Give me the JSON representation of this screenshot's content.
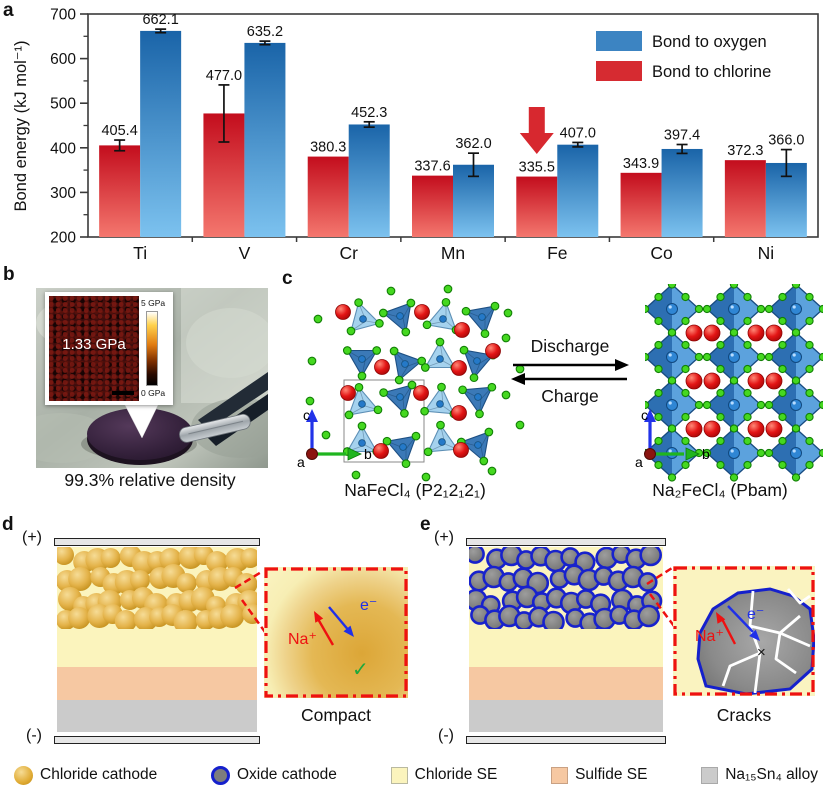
{
  "figure": {
    "panel_labels": {
      "a": "a",
      "b": "b",
      "c": "c",
      "d": "d",
      "e": "e"
    }
  },
  "chart_data": {
    "type": "bar",
    "categories": [
      "Ti",
      "V",
      "Cr",
      "Mn",
      "Fe",
      "Co",
      "Ni"
    ],
    "series": [
      {
        "name": "Bond to chlorine",
        "color": "#d7282f",
        "values": [
          405.4,
          477.0,
          380.3,
          337.6,
          335.5,
          343.9,
          372.3
        ],
        "errors": [
          12,
          64,
          0,
          0,
          0,
          0,
          0
        ]
      },
      {
        "name": "Bond to oxygen",
        "color": "#3d85c0",
        "values": [
          662.1,
          635.2,
          452.3,
          362.0,
          407.0,
          397.4,
          366.0
        ],
        "errors": [
          4,
          4,
          6,
          26,
          5,
          10,
          30
        ]
      }
    ],
    "ylabel": "Bond energy (kJ mol⁻¹)",
    "ylim": [
      200,
      700
    ],
    "yticks": [
      200,
      300,
      400,
      500,
      600,
      700
    ],
    "grid": false,
    "legend_position": "top-right",
    "legend": [
      {
        "label": "Bond to oxygen",
        "color": "#3c84c2"
      },
      {
        "label": "Bond to chlorine",
        "color": "#d62b31"
      }
    ],
    "annotation": {
      "shape": "down-arrow",
      "category": "Fe",
      "series": "Bond to chlorine",
      "color": "#d7282f"
    }
  },
  "panel_b": {
    "inset_value": "1.33 GPa",
    "scale_max": "5 GPa",
    "scale_min": "0 GPa",
    "caption": "99.3% relative density"
  },
  "panel_c": {
    "left_caption": "NaFeCl₄ (P2₁2₁2₁)",
    "right_caption": "Na₂FeCl₄ (Pbam)",
    "forward_label": "Discharge",
    "backward_label": "Charge",
    "axis_a": "a",
    "axis_b": "b",
    "axis_c": "c"
  },
  "panel_d": {
    "positive": "(+)",
    "negative": "(-)",
    "ion_label": "Na⁺",
    "electron_label": "e⁻",
    "check_glyph": "✓",
    "caption": "Compact"
  },
  "panel_e": {
    "positive": "(+)",
    "negative": "(-)",
    "ion_label": "Na⁺",
    "electron_label": "e⁻",
    "cross_glyph": "×",
    "caption": "Cracks"
  },
  "bottom_legend": {
    "items": [
      {
        "label": "Chloride cathode",
        "swatch": "gold-sphere"
      },
      {
        "label": "Oxide cathode",
        "swatch": "gray-sphere-blue-ring"
      },
      {
        "label": "Chloride SE",
        "swatch": "#fbf4bd"
      },
      {
        "label": "Sulfide SE",
        "swatch": "#f6c8a2"
      },
      {
        "label": "Na₁₅Sn₄ alloy",
        "swatch": "#cbcbcb"
      }
    ]
  },
  "colors": {
    "bar_chlorine_top": "#c30d1d",
    "bar_chlorine_bottom": "#f4776e",
    "bar_oxygen_top": "#1a64a8",
    "bar_oxygen_bottom": "#7cc2ef",
    "chloride_cathode": "#dfaa33",
    "oxide_cathode": "#7d7d7d",
    "oxide_ring": "#1520cc",
    "chloride_se": "#fbf4bd",
    "sulfide_se": "#f6c8a2",
    "alloy": "#cbcbcb",
    "na_sphere": "#e31515",
    "cl_sphere": "#45d820",
    "fe_polyhedron": "#3d85c0"
  }
}
